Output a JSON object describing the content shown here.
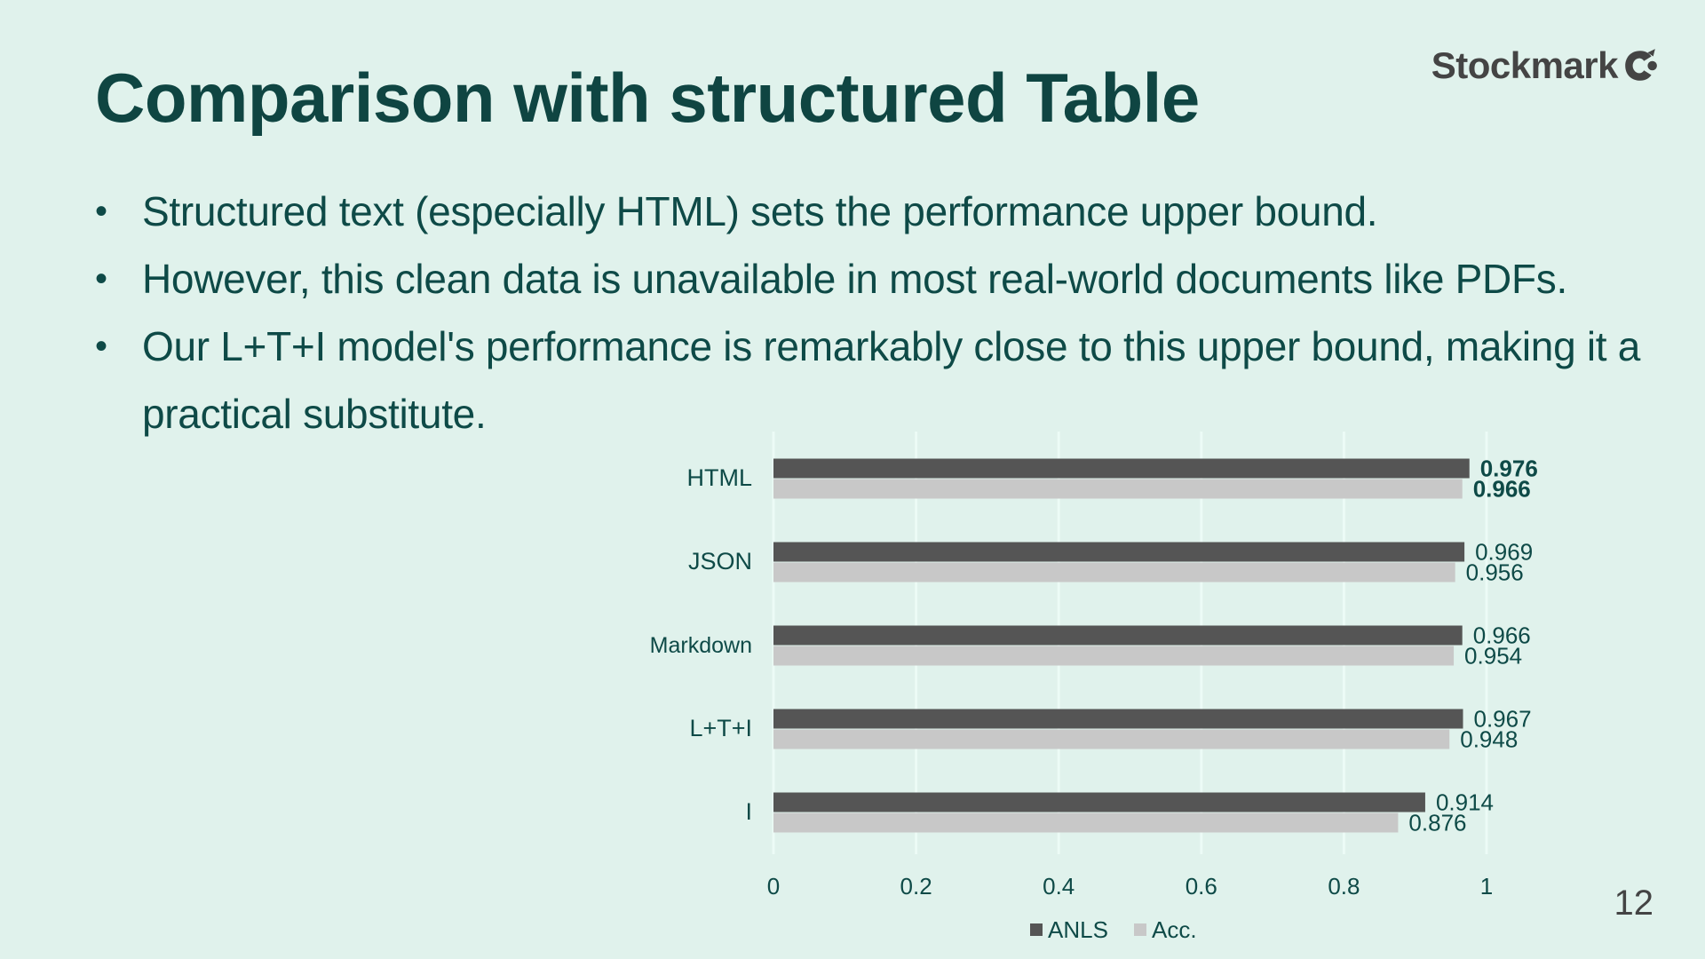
{
  "slide": {
    "title": "Comparison with structured Table",
    "page_number": "12",
    "brand": "Stockmark",
    "bullets": [
      "Structured text (especially HTML) sets the performance upper bound.",
      "However, this clean data is unavailable in most real-world documents like PDFs.",
      "Our L+T+I model's performance is remarkably close to this upper bound, making it a practical substitute."
    ]
  },
  "colors": {
    "background": "#e0f2ec",
    "title": "#0f4542",
    "body_text": "#0e4a47",
    "anls_bar": "#555555",
    "acc_bar": "#c8c8c8",
    "gridline": "#ecfbf6"
  },
  "chart_data": {
    "type": "bar",
    "orientation": "horizontal",
    "categories": [
      "HTML",
      "JSON",
      "Markdown",
      "L+T+I",
      "I"
    ],
    "series": [
      {
        "name": "ANLS",
        "values": [
          0.976,
          0.969,
          0.966,
          0.967,
          0.914
        ]
      },
      {
        "name": "Acc.",
        "values": [
          0.966,
          0.956,
          0.954,
          0.948,
          0.876
        ]
      }
    ],
    "data_labels": [
      [
        "0.976",
        "0.969",
        "0.966",
        "0.967",
        "0.914"
      ],
      [
        "0.966",
        "0.956",
        "0.954",
        "0.948",
        "0.876"
      ]
    ],
    "bold_labels_category": "HTML",
    "xlim": [
      0,
      1.2
    ],
    "xticks": [
      0,
      0.2,
      0.4,
      0.6,
      0.8,
      1
    ],
    "xtick_labels": [
      "0",
      "0.2",
      "0.4",
      "0.6",
      "0.8",
      "1"
    ],
    "grid": true,
    "legend_position": "bottom",
    "title": "",
    "xlabel": "",
    "ylabel": ""
  }
}
